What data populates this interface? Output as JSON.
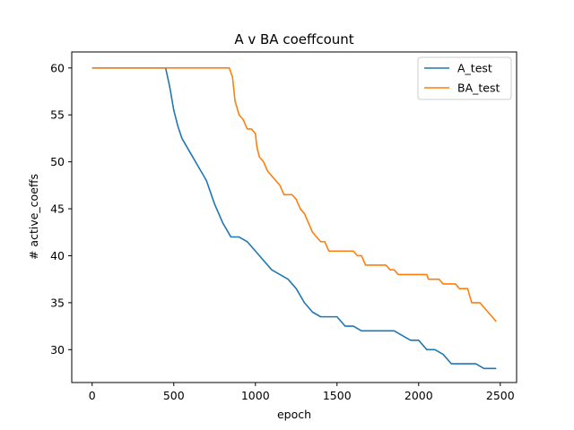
{
  "chart_data": {
    "type": "line",
    "title": "A v BA coeffcount",
    "xlabel": "epoch",
    "ylabel": "# active_coeffs",
    "xlim": [
      -125,
      2600
    ],
    "ylim": [
      26.5,
      61.7
    ],
    "xticks": [
      0,
      500,
      1000,
      1500,
      2000,
      2500
    ],
    "yticks": [
      30,
      35,
      40,
      45,
      50,
      55,
      60
    ],
    "grid": false,
    "legend_position": "top-right",
    "series": [
      {
        "name": "A_test",
        "color": "#1f77b4",
        "x": [
          0,
          100,
          200,
          300,
          400,
          450,
          475,
          500,
          525,
          550,
          600,
          650,
          700,
          750,
          800,
          850,
          900,
          950,
          1000,
          1050,
          1100,
          1150,
          1200,
          1250,
          1300,
          1350,
          1400,
          1450,
          1500,
          1550,
          1600,
          1650,
          1700,
          1750,
          1800,
          1850,
          1900,
          1950,
          2000,
          2050,
          2100,
          2150,
          2200,
          2250,
          2300,
          2350,
          2400,
          2450,
          2475
        ],
        "y": [
          60,
          60,
          60,
          60,
          60,
          60,
          58,
          55.5,
          53.8,
          52.5,
          51,
          49.5,
          48,
          45.5,
          43.5,
          42,
          42,
          41.5,
          40.5,
          39.5,
          38.5,
          38,
          37.5,
          36.5,
          35,
          34,
          33.5,
          33.5,
          33.5,
          32.5,
          32.5,
          32,
          32,
          32,
          32,
          32,
          31.5,
          31,
          31,
          30,
          30,
          29.5,
          28.5,
          28.5,
          28.5,
          28.5,
          28,
          28,
          28
        ]
      },
      {
        "name": "BA_test",
        "color": "#ff7f0e",
        "x": [
          0,
          100,
          200,
          300,
          400,
          500,
          600,
          700,
          800,
          840,
          860,
          875,
          900,
          925,
          950,
          975,
          1000,
          1010,
          1025,
          1050,
          1075,
          1100,
          1125,
          1150,
          1175,
          1200,
          1225,
          1250,
          1275,
          1300,
          1325,
          1350,
          1375,
          1400,
          1425,
          1450,
          1500,
          1550,
          1575,
          1600,
          1625,
          1650,
          1675,
          1700,
          1750,
          1800,
          1825,
          1850,
          1875,
          1900,
          1950,
          2000,
          2050,
          2060,
          2100,
          2125,
          2150,
          2200,
          2225,
          2250,
          2275,
          2300,
          2325,
          2350,
          2375,
          2400,
          2425,
          2450,
          2475
        ],
        "y": [
          60,
          60,
          60,
          60,
          60,
          60,
          60,
          60,
          60,
          60,
          59,
          56.5,
          55,
          54.5,
          53.5,
          53.5,
          53,
          51.5,
          50.5,
          50,
          49,
          48.5,
          48,
          47.5,
          46.5,
          46.5,
          46.5,
          46,
          45,
          44.5,
          43.5,
          42.5,
          42,
          41.5,
          41.5,
          40.5,
          40.5,
          40.5,
          40.5,
          40.5,
          40,
          40,
          39,
          39,
          39,
          39,
          38.5,
          38.5,
          38,
          38,
          38,
          38,
          38,
          37.5,
          37.5,
          37.5,
          37,
          37,
          37,
          36.5,
          36.5,
          36.5,
          35,
          35,
          35,
          34.5,
          34,
          33.5,
          33
        ]
      }
    ]
  }
}
